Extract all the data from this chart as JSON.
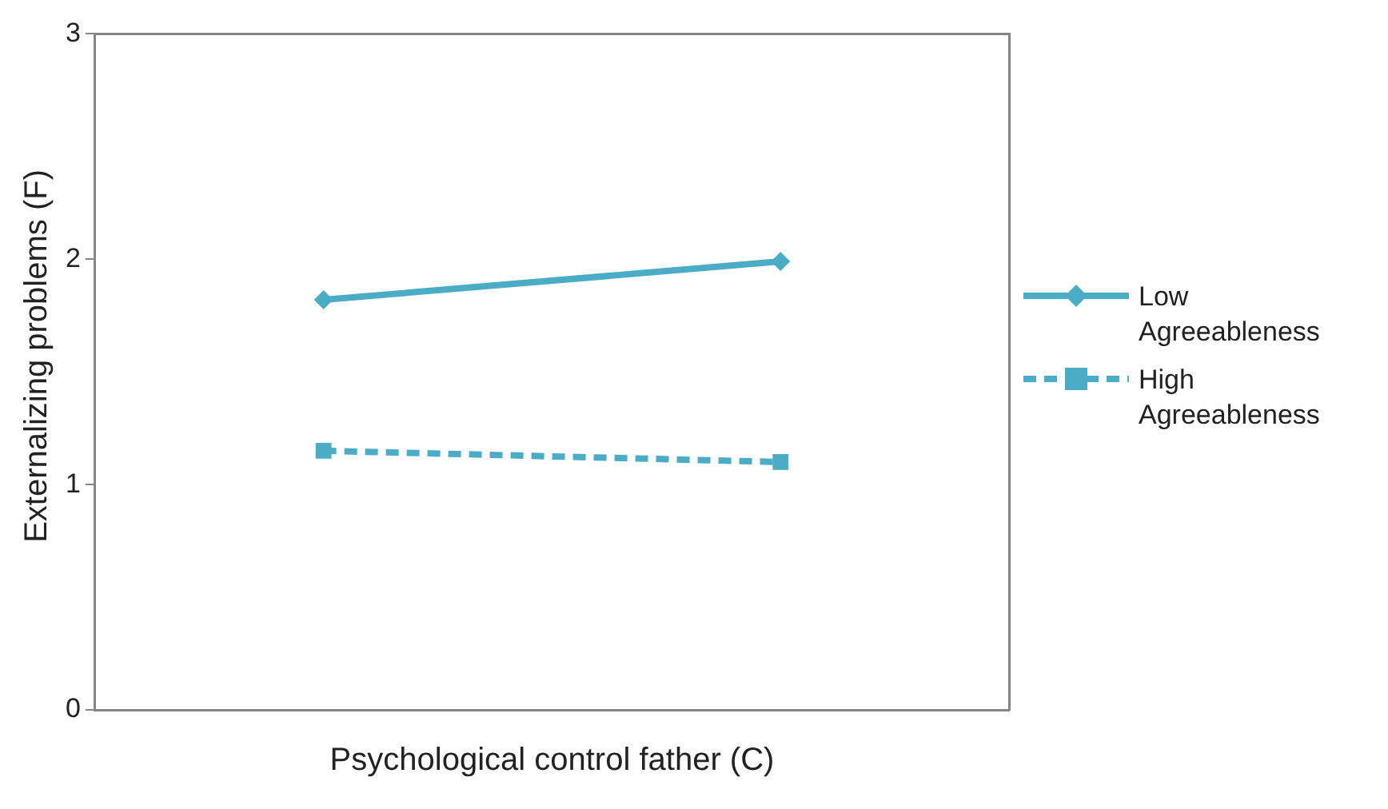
{
  "chart_data": {
    "type": "line",
    "xlabel": "Psychological control father (C)",
    "ylabel": "Externalizing problems (F)",
    "categories": [
      null,
      null
    ],
    "series": [
      {
        "name": "Low Agreeableness",
        "color": "#4bacc6",
        "values": [
          1.82,
          1.99
        ],
        "marker": "diamond",
        "line_style": "solid"
      },
      {
        "name": "High Agreeableness",
        "color": "#4bacc6",
        "values": [
          1.15,
          1.1
        ],
        "marker": "square",
        "line_style": "dashed"
      }
    ],
    "ylim": [
      0,
      3
    ],
    "yticks": [
      0,
      1,
      2,
      3
    ],
    "grid": false,
    "legend": "right",
    "tick_labels": "y"
  }
}
